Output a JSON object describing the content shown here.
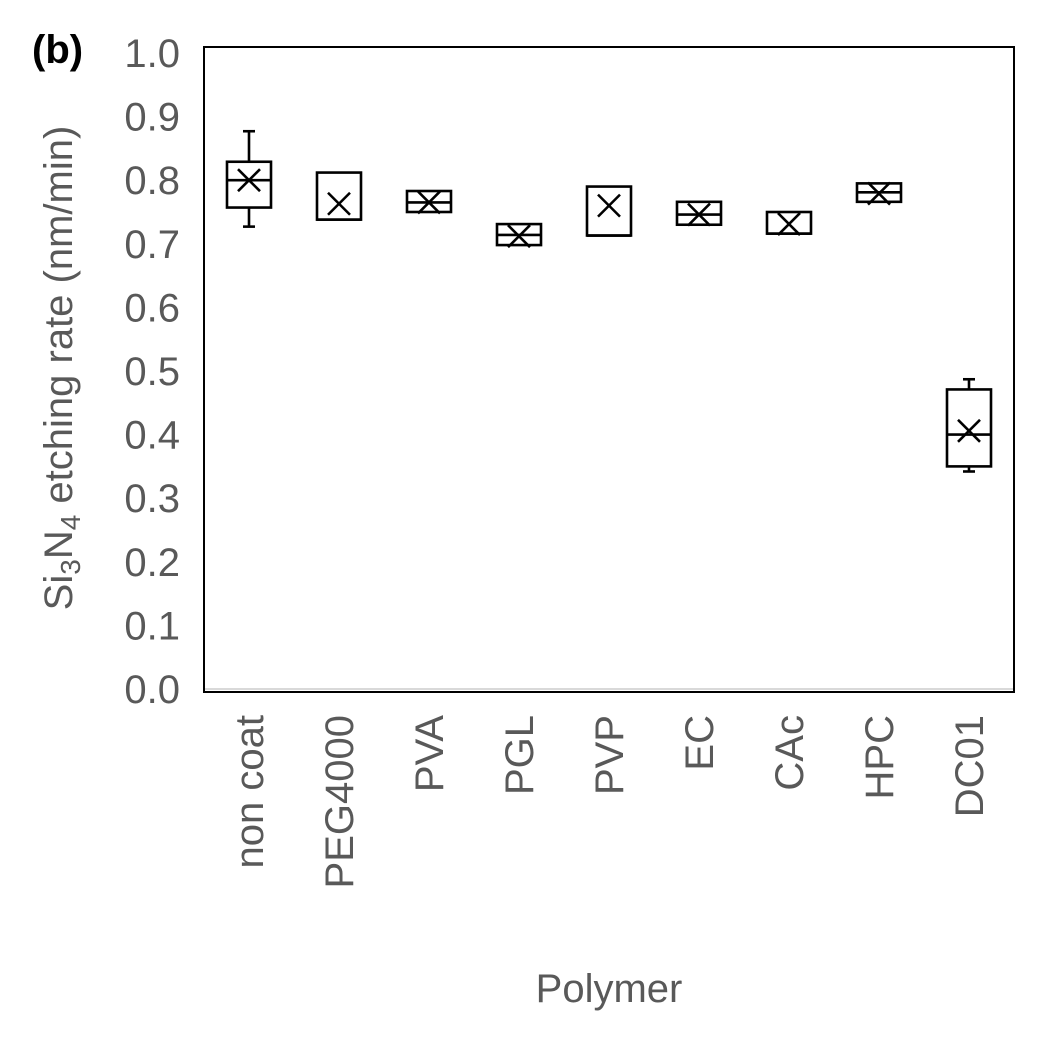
{
  "chart_data": {
    "type": "box",
    "panel_label": "(b)",
    "title": "",
    "xlabel": "Polymer",
    "ylabel_parts": {
      "p1": "Si",
      "s1": "3",
      "p2": "N",
      "s2": "4",
      "p3": " etching rate (nm/min)"
    },
    "ylim": [
      0.0,
      1.0
    ],
    "yticks": [
      "0.0",
      "0.1",
      "0.2",
      "0.3",
      "0.4",
      "0.5",
      "0.6",
      "0.7",
      "0.8",
      "0.9",
      "1.0"
    ],
    "grid": false,
    "legend": "none",
    "categories": [
      "non coat",
      "PEG4000",
      "PVA",
      "PGL",
      "PVP",
      "EC",
      "CAc",
      "HPC",
      "DC01"
    ],
    "boxes": [
      {
        "whisker_low": 0.727,
        "q1": 0.757,
        "median": 0.8,
        "q3": 0.829,
        "whisker_high": 0.877,
        "mean": 0.8
      },
      {
        "whisker_low": 0.738,
        "q1": 0.738,
        "median": 0.738,
        "q3": 0.812,
        "whisker_high": 0.812,
        "mean": 0.763
      },
      {
        "whisker_low": 0.75,
        "q1": 0.75,
        "median": 0.765,
        "q3": 0.783,
        "whisker_high": 0.783,
        "mean": 0.765
      },
      {
        "whisker_low": 0.698,
        "q1": 0.698,
        "median": 0.714,
        "q3": 0.731,
        "whisker_high": 0.731,
        "mean": 0.712
      },
      {
        "whisker_low": 0.713,
        "q1": 0.713,
        "median": 0.713,
        "q3": 0.79,
        "whisker_high": 0.79,
        "mean": 0.76
      },
      {
        "whisker_low": 0.73,
        "q1": 0.73,
        "median": 0.746,
        "q3": 0.766,
        "whisker_high": 0.766,
        "mean": 0.746
      },
      {
        "whisker_low": 0.716,
        "q1": 0.716,
        "median": 0.716,
        "q3": 0.75,
        "whisker_high": 0.75,
        "mean": 0.731
      },
      {
        "whisker_low": 0.766,
        "q1": 0.766,
        "median": 0.781,
        "q3": 0.795,
        "whisker_high": 0.795,
        "mean": 0.779
      },
      {
        "whisker_low": 0.342,
        "q1": 0.35,
        "median": 0.4,
        "q3": 0.471,
        "whisker_high": 0.487,
        "mean": 0.406
      }
    ]
  }
}
